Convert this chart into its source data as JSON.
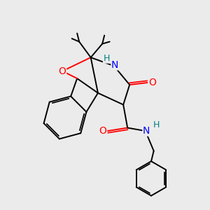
{
  "background_color": "#ebebeb",
  "atom_colors": {
    "O": "#ff0000",
    "N": "#0000ff",
    "H": "#008080",
    "C": "#000000"
  },
  "bond_color": "#000000",
  "bond_lw": 1.4
}
